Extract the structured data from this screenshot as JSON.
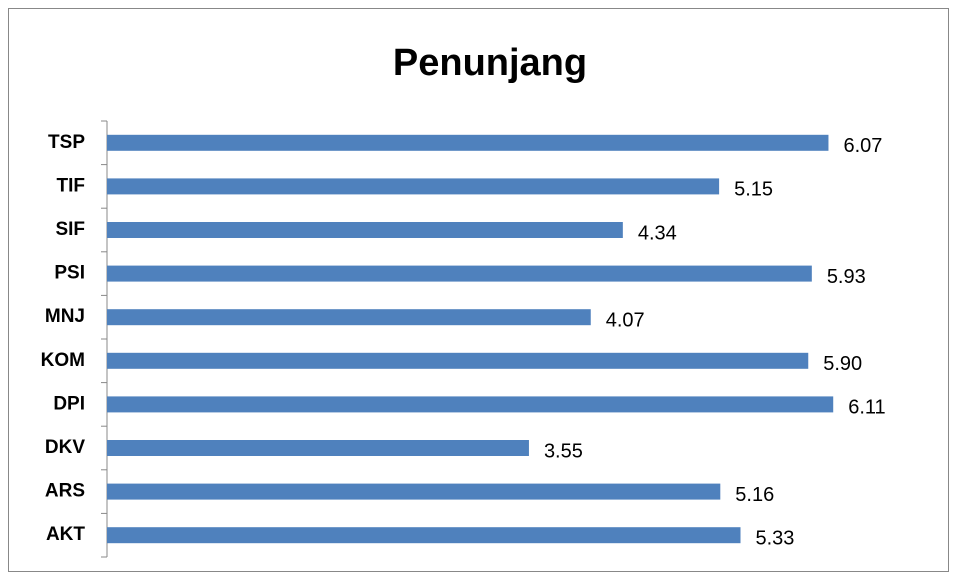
{
  "chart_data": {
    "type": "bar",
    "orientation": "horizontal",
    "title": "Penunjang",
    "categories": [
      "TSP",
      "TIF",
      "SIF",
      "PSI",
      "MNJ",
      "KOM",
      "DPI",
      "DKV",
      "ARS",
      "AKT"
    ],
    "values": [
      6.07,
      5.15,
      4.34,
      5.93,
      4.07,
      5.9,
      6.11,
      3.55,
      5.16,
      5.33
    ],
    "value_labels": [
      "6.07",
      "5.15",
      "4.34",
      "5.93",
      "4.07",
      "5.90",
      "6.11",
      "3.55",
      "5.16",
      "5.33"
    ],
    "color": "#4f81bd",
    "xlim": [
      0,
      7
    ]
  }
}
